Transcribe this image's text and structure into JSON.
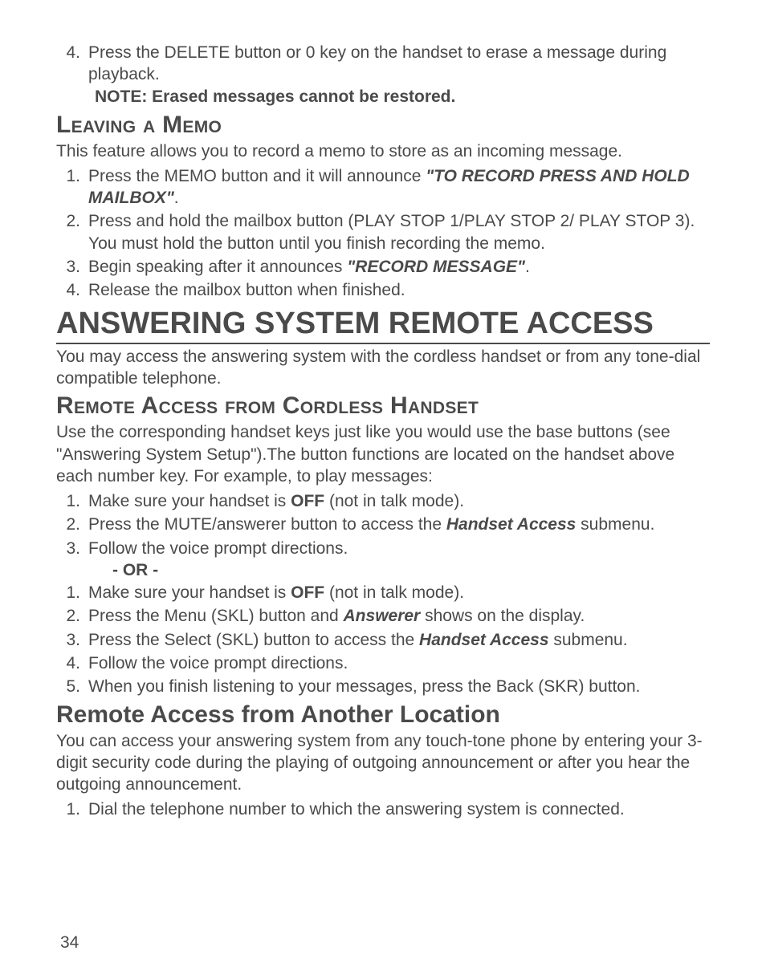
{
  "colors": {
    "text": "#4a4a4a",
    "background": "#ffffff",
    "rule": "#4a4a4a"
  },
  "typography": {
    "body_fontsize_pt": 16,
    "h1_fontsize_pt": 28,
    "h2_fontsize_pt": 22,
    "font_family": "Arial, Helvetica, sans-serif"
  },
  "top_list": {
    "item4": {
      "num": "4.",
      "text": "Press the DELETE button or 0 key on the handset to erase a message during playback."
    },
    "note": "NOTE: Erased messages cannot be restored."
  },
  "leaving_memo": {
    "heading": "Leaving a Memo",
    "intro": "This feature allows you to record a memo to store as an incoming message.",
    "items": {
      "n1": "1.",
      "t1a": "Press the MEMO button and it will announce ",
      "t1b": "\"TO RECORD PRESS AND HOLD MAILBOX\"",
      "t1c": ".",
      "n2": "2.",
      "t2": "Press and hold the mailbox button (PLAY STOP 1/PLAY STOP 2/ PLAY STOP 3). You must hold the button until you finish recording the memo.",
      "n3": "3.",
      "t3a": "Begin speaking after it announces ",
      "t3b": "\"RECORD MESSAGE\"",
      "t3c": ".",
      "n4": "4.",
      "t4": "Release the mailbox button when finished."
    }
  },
  "remote_access": {
    "heading": "ANSWERING SYSTEM REMOTE ACCESS",
    "intro": "You may access the answering system with the cordless handset or from any tone-dial compatible telephone."
  },
  "cordless": {
    "heading": "Remote Access from Cordless Handset",
    "intro": "Use the corresponding handset keys just like you would use the base buttons (see \"Answering System Setup\").The button functions are located on the handset above each number key. For example, to play messages:",
    "listA": {
      "n1": "1.",
      "t1a": "Make sure your handset is ",
      "t1b": "OFF",
      "t1c": " (not in talk mode).",
      "n2": "2.",
      "t2a": "Press the MUTE/answerer button to access the ",
      "t2b": "Handset Access",
      "t2c": " submenu.",
      "n3": "3.",
      "t3": "Follow the voice prompt directions."
    },
    "or": "- OR -",
    "listB": {
      "n1": "1.",
      "t1a": "Make sure your handset is ",
      "t1b": "OFF",
      "t1c": " (not in talk mode).",
      "n2": "2.",
      "t2a": "Press the Menu (SKL) button and ",
      "t2b": "Answerer",
      "t2c": " shows on the display.",
      "n3": "3.",
      "t3a": "Press the Select (SKL) button to access the ",
      "t3b": "Handset Access",
      "t3c": " submenu.",
      "n4": "4.",
      "t4": "Follow the voice prompt directions.",
      "n5": "5.",
      "t5": "When you finish listening to your messages, press the Back (SKR) button."
    }
  },
  "another_location": {
    "heading": "Remote Access from Another Location",
    "intro": "You can access your answering system from any touch-tone phone by entering your 3-digit security code during the playing of outgoing announcement or after you hear the outgoing announcement.",
    "n1": "1.",
    "t1": "Dial the telephone number to which the answering system is connected."
  },
  "page_number": "34"
}
